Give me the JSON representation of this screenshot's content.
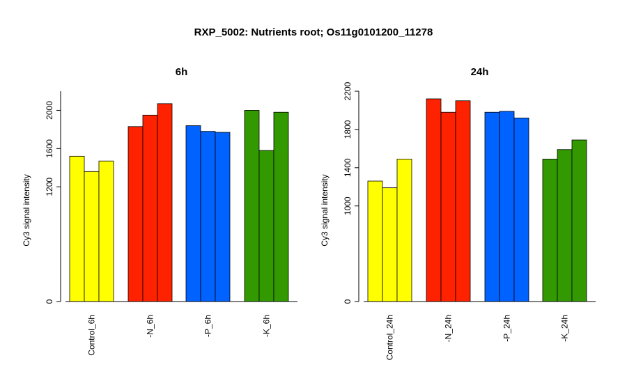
{
  "title": "RXP_5002: Nutrients root; Os11g0101200_11278",
  "chart_data": [
    {
      "type": "bar",
      "title": "6h",
      "ylabel": "Cy3 signal intensity",
      "ylim": [
        0,
        2200
      ],
      "yticks": [
        0,
        1200,
        1600,
        2000
      ],
      "categories": [
        "Control_6h",
        "-N_6h",
        "-P_6h",
        "-K_6h"
      ],
      "group_colors": [
        "#ffff00",
        "#ff2200",
        "#0062ff",
        "#339900"
      ],
      "values": [
        [
          1520,
          1360,
          1470
        ],
        [
          1830,
          1950,
          2070
        ],
        [
          1840,
          1780,
          1770
        ],
        [
          2000,
          1580,
          1980
        ]
      ]
    },
    {
      "type": "bar",
      "title": "24h",
      "ylabel": "Cy3 signal intensity",
      "ylim": [
        0,
        2200
      ],
      "yticks": [
        0,
        1000,
        1400,
        1800,
        2200
      ],
      "categories": [
        "Control_24h",
        "-N_24h",
        "-P_24h",
        "-K_24h"
      ],
      "group_colors": [
        "#ffff00",
        "#ff2200",
        "#0062ff",
        "#339900"
      ],
      "values": [
        [
          1260,
          1190,
          1490
        ],
        [
          2120,
          1980,
          2100
        ],
        [
          1980,
          1990,
          1920
        ],
        [
          1490,
          1590,
          1690
        ]
      ]
    }
  ]
}
